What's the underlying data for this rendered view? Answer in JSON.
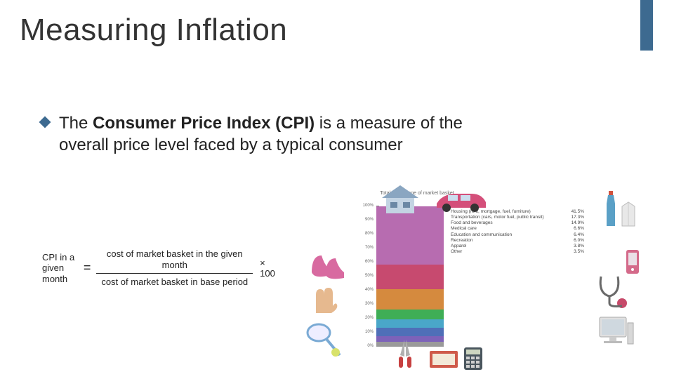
{
  "accent_color": "#3d6a90",
  "title_color": "#333333",
  "body_color": "#222222",
  "bullet_color": "#3d6a90",
  "title": "Measuring Inflation",
  "body": {
    "prefix": "The ",
    "bold": "Consumer Price Index (CPI)",
    "suffix": " is a measure of the overall price level faced by a typical consumer"
  },
  "formula": {
    "left_label": "CPI in a given month",
    "equals": "=",
    "numerator": "cost of market basket in the given month",
    "denominator": "cost of market basket in base period",
    "tail": "× 100"
  },
  "chart": {
    "title": "Total percentage of market basket",
    "axis_max": 100,
    "ticks": [
      100,
      90,
      80,
      70,
      60,
      50,
      40,
      30,
      20,
      10,
      0
    ],
    "segments": [
      {
        "label": "Housing (rent, mortgage, fuel, furniture)",
        "pct": 41.5,
        "color": "#b76cb0"
      },
      {
        "label": "Transportation (cars, motor fuel, public transit)",
        "pct": 17.3,
        "color": "#c74a6f"
      },
      {
        "label": "Food and beverages",
        "pct": 14.9,
        "color": "#d58a3e"
      },
      {
        "label": "Medical care",
        "pct": 6.6,
        "color": "#3fae56"
      },
      {
        "label": "Education and communication",
        "pct": 6.4,
        "color": "#4aa7c9"
      },
      {
        "label": "Recreation",
        "pct": 6.0,
        "color": "#4f6fb8"
      },
      {
        "label": "Apparel",
        "pct": 3.8,
        "color": "#7d62b9"
      },
      {
        "label": "Other",
        "pct": 3.5,
        "color": "#9a9a9a"
      }
    ]
  },
  "clipart_palette": {
    "house_roof": "#8aa6c1",
    "house_wall": "#c3d4e3",
    "car_body": "#d44f7a",
    "bottle": "#5aa0c6",
    "bottle_cap": "#d0533f",
    "milk": "#e8e8e8",
    "shoe": "#d86aa0",
    "glove": "#e6b98f",
    "racket_frame": "#7aaad4",
    "racket_string": "#ccd",
    "shears_blade": "#b0b0b0",
    "shears_handle": "#c74040",
    "book": "#cf5a4a",
    "calc_body": "#4a565e",
    "calc_screen": "#cdd6c0",
    "steth": "#6a6a6a",
    "steth_head": "#c74a6a",
    "comp_body": "#e0e0e0",
    "comp_screen": "#cfd8df",
    "phone_body": "#d46a8a"
  }
}
